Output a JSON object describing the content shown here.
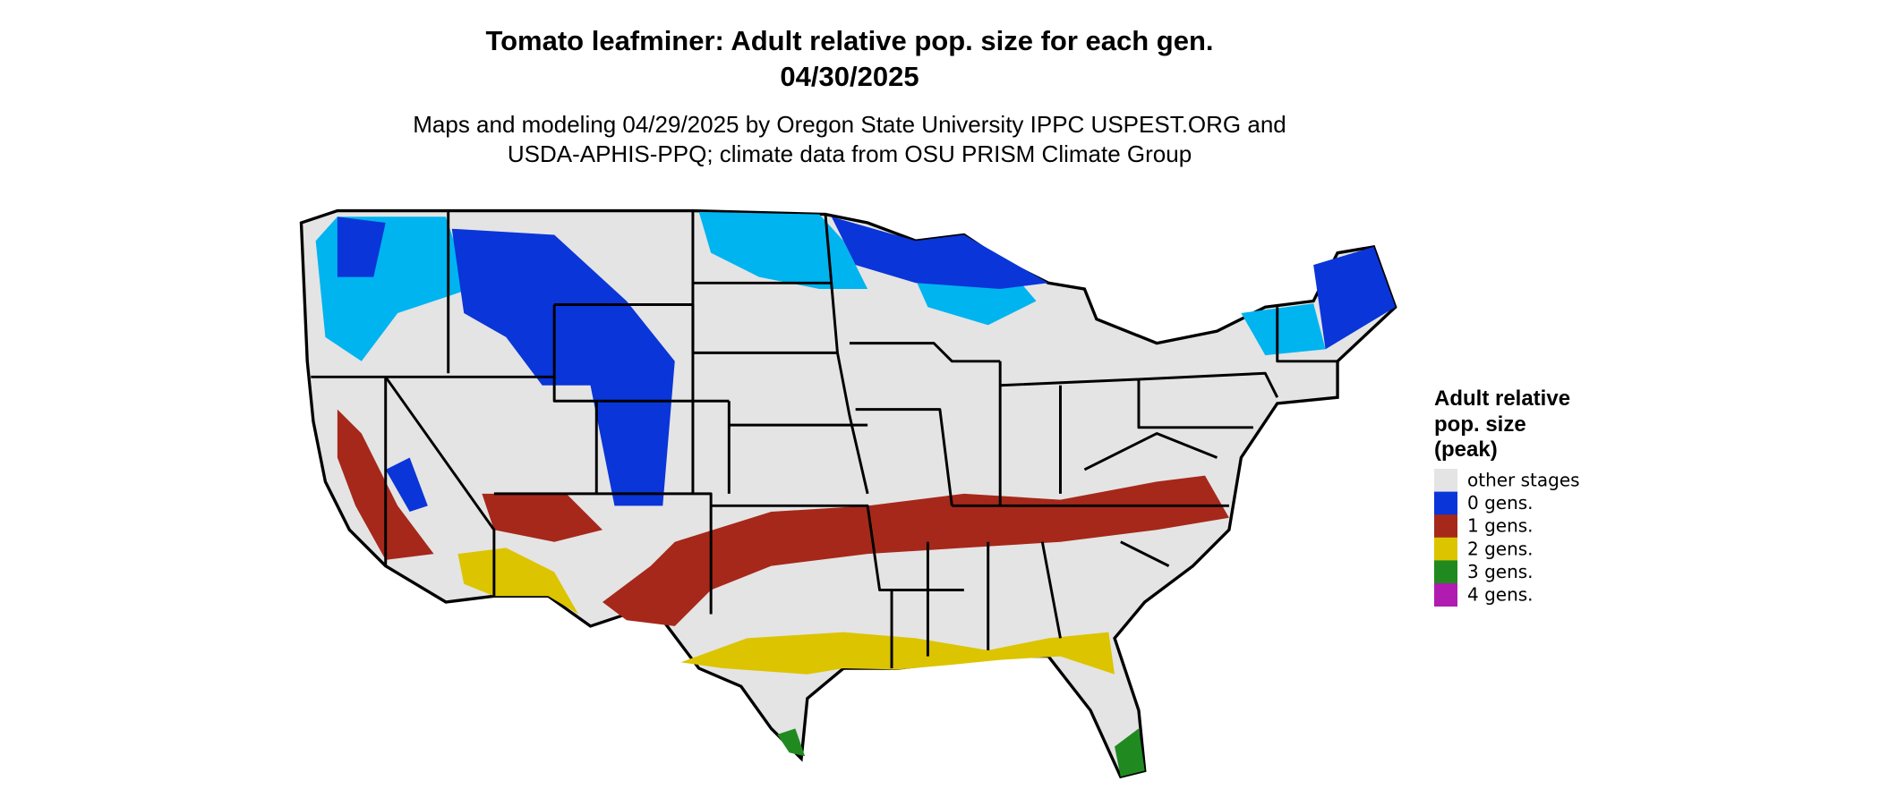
{
  "header": {
    "title": [
      "Tomato leafminer: Adult relative pop. size for each gen.",
      "04/30/2025"
    ],
    "subtitle": [
      "Maps and modeling 04/29/2025 by Oregon State University IPPC USPEST.ORG and",
      "USDA-APHIS-PPQ; climate data from OSU PRISM Climate Group"
    ]
  },
  "legend": {
    "title": [
      "Adult relative",
      "pop. size",
      "(peak)"
    ],
    "items": [
      {
        "label": "other stages",
        "color": "#e4e4e4"
      },
      {
        "label": "0 gens.",
        "color": "#0a35d8"
      },
      {
        "label": "1 gens.",
        "color": "#a6281a"
      },
      {
        "label": "2 gens.",
        "color": "#dcc400"
      },
      {
        "label": "3 gens.",
        "color": "#208a20"
      },
      {
        "label": "4 gens.",
        "color": "#b01cb0"
      }
    ]
  }
}
